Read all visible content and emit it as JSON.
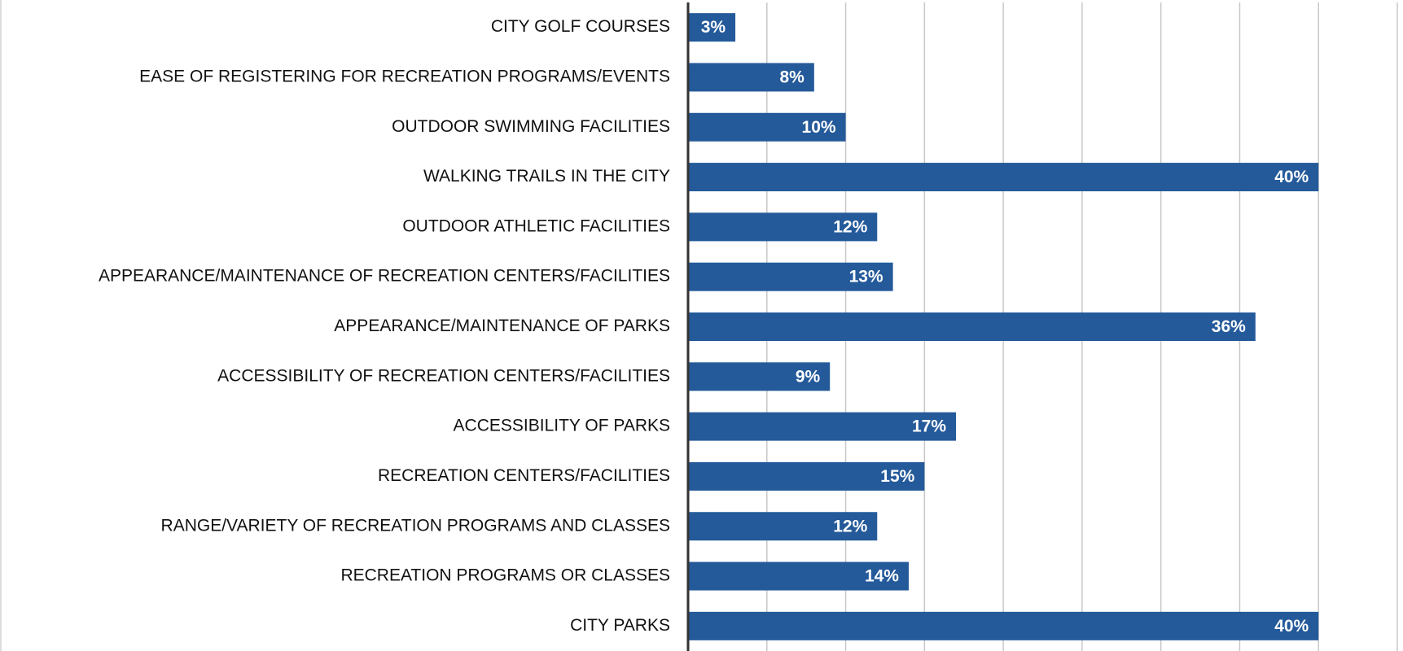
{
  "chart_data": {
    "type": "bar",
    "orientation": "horizontal",
    "categories": [
      "CITY GOLF COURSES",
      "EASE OF REGISTERING FOR RECREATION PROGRAMS/EVENTS",
      "OUTDOOR SWIMMING FACILITIES",
      "WALKING TRAILS IN THE CITY",
      "OUTDOOR ATHLETIC FACILITIES",
      "APPEARANCE/MAINTENANCE OF RECREATION CENTERS/FACILITIES",
      "APPEARANCE/MAINTENANCE OF PARKS",
      "ACCESSIBILITY OF RECREATION CENTERS/FACILITIES",
      "ACCESSIBILITY OF PARKS",
      "RECREATION CENTERS/FACILITIES",
      "RANGE/VARIETY OF RECREATION PROGRAMS AND CLASSES",
      "RECREATION PROGRAMS OR CLASSES",
      "CITY PARKS"
    ],
    "values": [
      3,
      8,
      10,
      40,
      12,
      13,
      36,
      9,
      17,
      15,
      12,
      14,
      40
    ],
    "value_labels": [
      "3%",
      "8%",
      "10%",
      "40%",
      "12%",
      "13%",
      "36%",
      "9%",
      "17%",
      "15%",
      "12%",
      "14%",
      "40%"
    ],
    "color": "#245a9a",
    "xlim": [
      0,
      45
    ],
    "xticks": [
      0,
      5,
      10,
      15,
      20,
      25,
      30,
      35,
      40,
      45
    ],
    "grid": true
  }
}
